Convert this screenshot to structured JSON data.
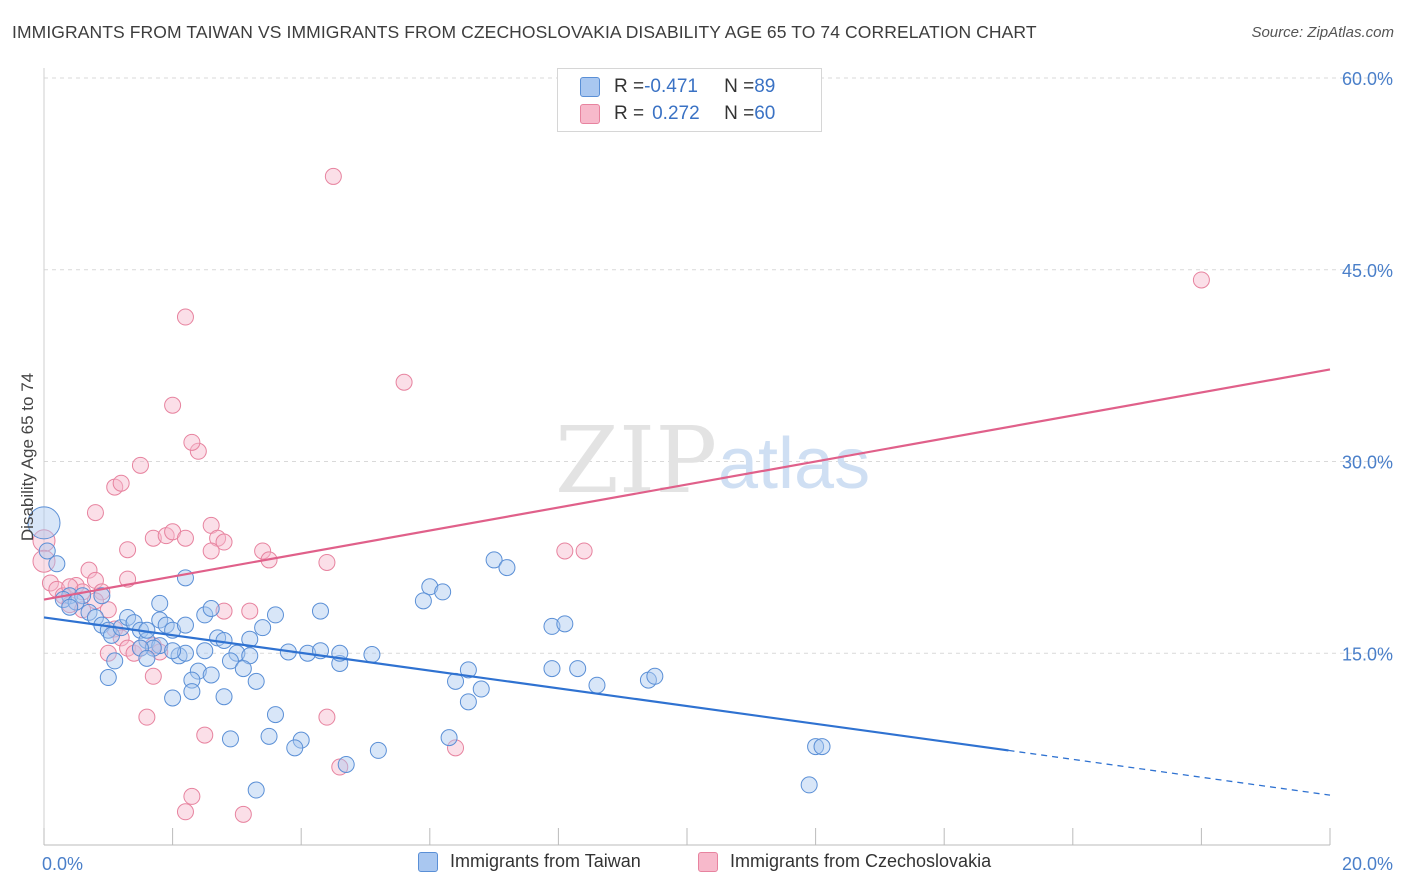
{
  "title": "IMMIGRANTS FROM TAIWAN VS IMMIGRANTS FROM CZECHOSLOVAKIA DISABILITY AGE 65 TO 74 CORRELATION CHART",
  "source": "Source: ZipAtlas.com",
  "watermark": {
    "zip": "ZIP",
    "atlas": "atlas"
  },
  "legend": {
    "taiwan": {
      "r_label": "R = ",
      "r_value": "-0.471",
      "n_label": "N = ",
      "n_value": "89"
    },
    "czech": {
      "r_label": "R = ",
      "r_value": "0.272",
      "n_label": "N = ",
      "n_value": "60"
    }
  },
  "bottom_legend": {
    "taiwan": "Immigrants from Taiwan",
    "czech": "Immigrants from Czechoslovakia"
  },
  "colors": {
    "taiwan_fill": "#a9c7f0",
    "taiwan_stroke": "#5a8fd6",
    "taiwan_line": "#2f72d1",
    "czech_fill": "#f7b9cb",
    "czech_stroke": "#e7839f",
    "czech_line": "#e0608a",
    "grid": "#d9d9d9",
    "tick_text": "#4a7fc9"
  },
  "chart_data": {
    "type": "scatter",
    "title": "IMMIGRANTS FROM TAIWAN VS IMMIGRANTS FROM CZECHOSLOVAKIA DISABILITY AGE 65 TO 74 CORRELATION CHART",
    "xlabel": "",
    "ylabel": "Disability Age 65 to 74",
    "xlim": [
      0,
      20
    ],
    "ylim": [
      0,
      60
    ],
    "x_tick_labels": [
      "0.0%",
      "20.0%"
    ],
    "y_ticks": [
      15,
      30,
      45,
      60
    ],
    "y_tick_labels": [
      "15.0%",
      "30.0%",
      "45.0%",
      "60.0%"
    ],
    "series": [
      {
        "name": "Immigrants from Taiwan",
        "r": -0.471,
        "n": 89,
        "trend": {
          "x0": 0,
          "y0": 17.8,
          "x1": 15.0,
          "y1": 7.4,
          "dash_to_x": 20,
          "dash_to_y": 3.9
        },
        "points": [
          [
            0.0,
            25.2
          ],
          [
            0.05,
            23.0
          ],
          [
            0.2,
            22.0
          ],
          [
            0.4,
            19.5
          ],
          [
            0.3,
            19.2
          ],
          [
            0.6,
            19.5
          ],
          [
            0.5,
            19.0
          ],
          [
            0.7,
            18.2
          ],
          [
            0.8,
            17.8
          ],
          [
            0.9,
            17.2
          ],
          [
            1.0,
            16.8
          ],
          [
            1.05,
            16.4
          ],
          [
            1.2,
            17.0
          ],
          [
            1.3,
            17.8
          ],
          [
            1.4,
            17.4
          ],
          [
            1.5,
            16.8
          ],
          [
            1.6,
            16.0
          ],
          [
            1.8,
            17.6
          ],
          [
            1.9,
            17.2
          ],
          [
            2.0,
            16.8
          ],
          [
            1.8,
            15.6
          ],
          [
            1.7,
            15.4
          ],
          [
            2.1,
            14.8
          ],
          [
            2.2,
            15.0
          ],
          [
            1.1,
            14.4
          ],
          [
            1.0,
            13.1
          ],
          [
            2.5,
            18.0
          ],
          [
            2.6,
            18.5
          ],
          [
            2.7,
            16.2
          ],
          [
            2.8,
            16.0
          ],
          [
            3.0,
            15.0
          ],
          [
            2.9,
            14.4
          ],
          [
            3.2,
            14.8
          ],
          [
            2.4,
            13.6
          ],
          [
            2.3,
            12.9
          ],
          [
            2.3,
            12.0
          ],
          [
            2.0,
            11.5
          ],
          [
            2.8,
            11.6
          ],
          [
            3.1,
            13.8
          ],
          [
            3.3,
            12.8
          ],
          [
            2.2,
            20.9
          ],
          [
            1.8,
            18.9
          ],
          [
            2.0,
            15.2
          ],
          [
            2.6,
            13.3
          ],
          [
            3.6,
            18.0
          ],
          [
            3.4,
            17.0
          ],
          [
            4.1,
            15.0
          ],
          [
            4.3,
            15.2
          ],
          [
            3.6,
            10.2
          ],
          [
            3.5,
            8.5
          ],
          [
            4.0,
            8.2
          ],
          [
            2.9,
            8.3
          ],
          [
            3.9,
            7.6
          ],
          [
            4.7,
            6.3
          ],
          [
            5.2,
            7.4
          ],
          [
            5.1,
            14.9
          ],
          [
            4.6,
            14.2
          ],
          [
            4.3,
            18.3
          ],
          [
            6.0,
            20.2
          ],
          [
            6.2,
            19.8
          ],
          [
            5.9,
            19.1
          ],
          [
            7.0,
            22.3
          ],
          [
            7.2,
            21.7
          ],
          [
            7.9,
            17.1
          ],
          [
            8.1,
            17.3
          ],
          [
            6.4,
            12.8
          ],
          [
            6.6,
            13.7
          ],
          [
            6.8,
            12.2
          ],
          [
            6.6,
            11.2
          ],
          [
            7.9,
            13.8
          ],
          [
            8.3,
            13.8
          ],
          [
            8.6,
            12.5
          ],
          [
            9.4,
            12.9
          ],
          [
            9.5,
            13.2
          ],
          [
            12.0,
            7.7
          ],
          [
            12.1,
            7.7
          ],
          [
            11.9,
            4.7
          ],
          [
            3.3,
            4.3
          ],
          [
            6.3,
            8.4
          ],
          [
            1.5,
            15.4
          ],
          [
            0.4,
            18.6
          ],
          [
            2.5,
            15.2
          ],
          [
            3.8,
            15.1
          ],
          [
            1.6,
            16.8
          ],
          [
            2.2,
            17.2
          ],
          [
            0.9,
            19.5
          ],
          [
            3.2,
            16.1
          ],
          [
            4.6,
            15.0
          ],
          [
            1.6,
            14.6
          ]
        ]
      },
      {
        "name": "Immigrants from Czechoslovakia",
        "r": 0.272,
        "n": 60,
        "trend": {
          "x0": 0,
          "y0": 19.2,
          "x1": 20,
          "y1": 37.2
        },
        "points": [
          [
            0.0,
            23.8
          ],
          [
            0.0,
            22.2
          ],
          [
            0.1,
            20.5
          ],
          [
            0.2,
            20.0
          ],
          [
            0.3,
            19.5
          ],
          [
            0.4,
            18.8
          ],
          [
            0.5,
            20.3
          ],
          [
            0.6,
            19.8
          ],
          [
            0.7,
            21.5
          ],
          [
            0.8,
            20.7
          ],
          [
            0.9,
            19.8
          ],
          [
            1.0,
            18.4
          ],
          [
            1.1,
            16.9
          ],
          [
            1.2,
            16.2
          ],
          [
            1.3,
            15.4
          ],
          [
            1.4,
            15.0
          ],
          [
            1.5,
            15.4
          ],
          [
            1.7,
            15.6
          ],
          [
            1.8,
            15.1
          ],
          [
            1.0,
            15.0
          ],
          [
            0.8,
            19.1
          ],
          [
            0.6,
            18.4
          ],
          [
            0.4,
            20.2
          ],
          [
            1.3,
            20.8
          ],
          [
            1.3,
            23.1
          ],
          [
            1.7,
            24.0
          ],
          [
            1.9,
            24.2
          ],
          [
            2.0,
            24.5
          ],
          [
            2.2,
            24.0
          ],
          [
            2.6,
            25.0
          ],
          [
            2.7,
            24.0
          ],
          [
            2.8,
            23.7
          ],
          [
            2.6,
            23.0
          ],
          [
            3.4,
            23.0
          ],
          [
            3.5,
            22.3
          ],
          [
            4.4,
            22.1
          ],
          [
            2.8,
            18.3
          ],
          [
            3.2,
            18.3
          ],
          [
            1.1,
            28.0
          ],
          [
            1.2,
            28.3
          ],
          [
            1.5,
            29.7
          ],
          [
            0.8,
            26.0
          ],
          [
            2.4,
            30.8
          ],
          [
            2.3,
            31.5
          ],
          [
            2.0,
            34.4
          ],
          [
            2.2,
            41.3
          ],
          [
            4.5,
            52.3
          ],
          [
            5.6,
            36.2
          ],
          [
            1.6,
            10.0
          ],
          [
            2.5,
            8.6
          ],
          [
            4.4,
            10.0
          ],
          [
            4.6,
            6.1
          ],
          [
            2.3,
            3.8
          ],
          [
            2.2,
            2.6
          ],
          [
            3.1,
            2.4
          ],
          [
            6.4,
            7.6
          ],
          [
            8.1,
            23.0
          ],
          [
            8.4,
            23.0
          ],
          [
            18.0,
            44.2
          ],
          [
            1.7,
            13.2
          ]
        ]
      }
    ]
  }
}
